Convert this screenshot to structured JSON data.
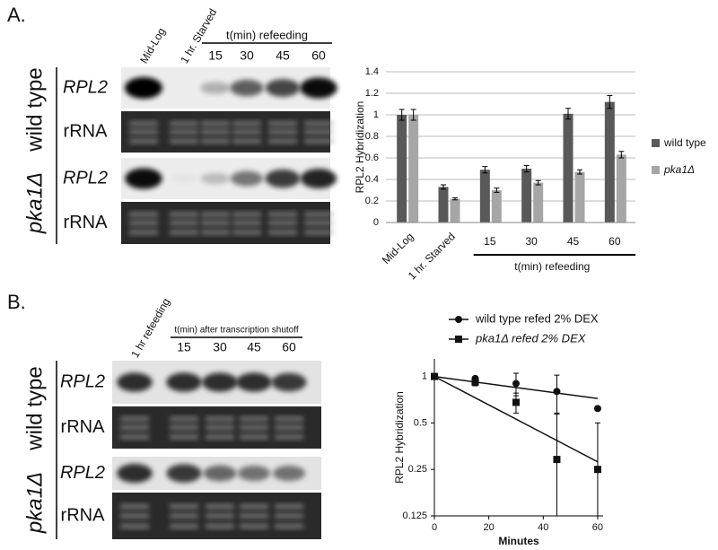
{
  "panel_labels": [
    "A.",
    "B."
  ],
  "gels": [
    {
      "lanes": [
        "Mid-Log",
        "1 hr. Starved"
      ],
      "timepoint_header": "t(min) refeeding",
      "timepoints": [
        15,
        30,
        45,
        60
      ],
      "strains": [
        {
          "name": "wild type",
          "rows": [
            "RPL2",
            "rRNA"
          ]
        },
        {
          "name": "pka1Δ",
          "rows": [
            "RPL2",
            "rRNA"
          ]
        }
      ]
    },
    {
      "lanes": [
        "1 hr refeeding"
      ],
      "timepoint_header": "t(min) after transcription shutoff",
      "timepoints": [
        15,
        30,
        45,
        60
      ],
      "strains": [
        {
          "name": "wild type",
          "rows": [
            "RPL2",
            "rRNA"
          ]
        },
        {
          "name": "pka1Δ",
          "rows": [
            "RPL2",
            "rRNA"
          ]
        }
      ]
    }
  ],
  "chart_data": [
    {
      "type": "bar",
      "ylabel": "RPL2 Hybridization",
      "categories": [
        "Mid-Log",
        "1 hr. Starved",
        "15",
        "30",
        "45",
        "60"
      ],
      "group_label": "t(min) refeeding",
      "series": [
        {
          "name": "wild type",
          "color": "#595959",
          "values": [
            1,
            0.33,
            0.49,
            0.5,
            1.01,
            1.12
          ],
          "errors": [
            0.05,
            0.02,
            0.03,
            0.03,
            0.05,
            0.06
          ]
        },
        {
          "name": "pka1Δ",
          "color": "#a6a6a6",
          "values": [
            1,
            0.22,
            0.3,
            0.37,
            0.47,
            0.63
          ],
          "errors": [
            0.05,
            0.01,
            0.02,
            0.02,
            0.02,
            0.03
          ]
        }
      ],
      "ylim": [
        0,
        1.4
      ],
      "yticks": [
        0,
        0.2,
        0.4,
        0.6,
        0.8,
        1,
        1.2,
        1.4
      ],
      "grid": true,
      "legend": "right"
    },
    {
      "type": "line",
      "ylabel": "RPL2 Hybridization",
      "xlabel": "Minutes",
      "log_scale": true,
      "x": [
        0,
        15,
        30,
        45,
        60
      ],
      "fit_x": [
        0,
        60
      ],
      "series": [
        {
          "name": "wild type refed 2% DEX",
          "color": "#111111",
          "marker": "circle",
          "values": [
            1,
            0.97,
            0.9,
            0.8,
            0.62
          ],
          "errors": [
            null,
            0.03,
            0.15,
            0.22,
            null
          ],
          "fit": [
            1,
            0.72
          ]
        },
        {
          "name": "pka1Δ refed 2% DEX",
          "color": "#111111",
          "marker": "square",
          "values": [
            1,
            0.92,
            0.68,
            0.29,
            0.25
          ],
          "errors": [
            null,
            0.05,
            0.1,
            0.28,
            0.25
          ],
          "fit": [
            1,
            0.28
          ]
        }
      ],
      "xlim": [
        0,
        62
      ],
      "xticks": [
        0,
        20,
        40,
        60
      ],
      "ylim": [
        0.125,
        1.3
      ],
      "yticks": [
        0.125,
        0.25,
        0.5,
        1
      ],
      "legend": "top"
    }
  ]
}
